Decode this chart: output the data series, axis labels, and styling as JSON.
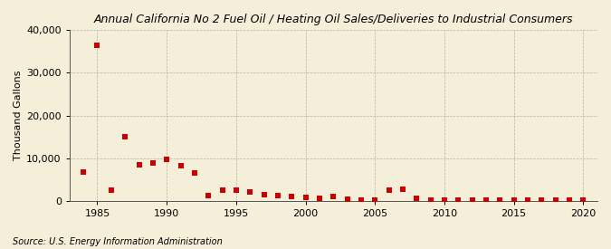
{
  "title": "Annual California No 2 Fuel Oil / Heating Oil Sales/Deliveries to Industrial Consumers",
  "ylabel": "Thousand Gallons",
  "source": "Source: U.S. Energy Information Administration",
  "background_color": "#f5eed8",
  "plot_background_color": "#f5eed8",
  "marker_color": "#cc0000",
  "marker": "s",
  "marker_size": 16,
  "xlim": [
    1983,
    2021
  ],
  "ylim": [
    0,
    40000
  ],
  "yticks": [
    0,
    10000,
    20000,
    30000,
    40000
  ],
  "xticks": [
    1985,
    1990,
    1995,
    2000,
    2005,
    2010,
    2015,
    2020
  ],
  "years": [
    1984,
    1985,
    1986,
    1987,
    1988,
    1989,
    1990,
    1991,
    1992,
    1993,
    1994,
    1995,
    1996,
    1997,
    1998,
    1999,
    2000,
    2001,
    2002,
    2003,
    2004,
    2005,
    2006,
    2007,
    2008,
    2009,
    2010,
    2011,
    2012,
    2013,
    2014,
    2015,
    2016,
    2017,
    2018,
    2019,
    2020
  ],
  "values": [
    6700,
    36500,
    2500,
    15000,
    8500,
    8800,
    9700,
    8200,
    6500,
    1200,
    2500,
    2500,
    2000,
    1500,
    1200,
    1000,
    700,
    500,
    1000,
    300,
    100,
    100,
    2500,
    2700,
    500,
    100,
    200,
    100,
    100,
    100,
    200,
    200,
    100,
    100,
    100,
    100,
    50
  ],
  "title_fontsize": 9,
  "ylabel_fontsize": 8,
  "tick_fontsize": 8,
  "source_fontsize": 7
}
